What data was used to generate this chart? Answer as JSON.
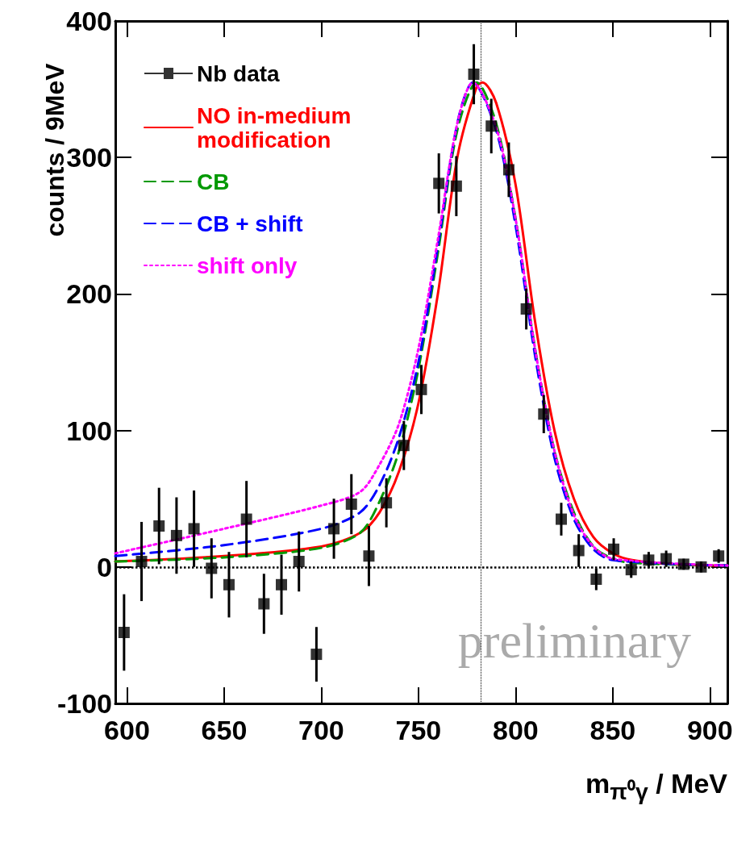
{
  "chart_data": {
    "type": "line",
    "xlabel": "m$_{π⁰γ}$ / MeV",
    "ylabel": "counts / 9MeV",
    "annotations": [
      "preliminary"
    ],
    "xlim": [
      594,
      909
    ],
    "xticks": [
      600,
      650,
      700,
      750,
      800,
      850,
      900
    ],
    "ylim": [
      -100,
      400
    ],
    "yticks": [
      -100,
      0,
      100,
      200,
      300,
      400
    ],
    "grid": false,
    "legend": "top left",
    "ref_lines": [
      {
        "axis": "y",
        "value": 0,
        "label": null,
        "line_style": "dotted"
      },
      {
        "axis": "x",
        "value": 782,
        "label": null,
        "line_style": "dotted"
      }
    ],
    "series": [
      {
        "name": "Nb data",
        "type": "scatter",
        "color": "#000000",
        "marker": "square",
        "x": [
          598.5,
          607.5,
          616.5,
          625.5,
          634.5,
          643.5,
          652.5,
          661.5,
          670.5,
          679.5,
          688.5,
          697.5,
          706.5,
          715.5,
          724.5,
          733.5,
          742.5,
          751.5,
          760.5,
          769.5,
          778.5,
          787.5,
          796.5,
          805.5,
          814.5,
          823.5,
          832.5,
          841.5,
          850.5,
          859.5,
          868.5,
          877.5,
          886.5,
          895.5,
          904.5
        ],
        "values": [
          -48,
          4,
          30,
          23,
          28,
          -1,
          -13,
          35,
          -27,
          -13,
          4,
          -64,
          28,
          46,
          8,
          47,
          89,
          130,
          281,
          279,
          361,
          323,
          291,
          189,
          112,
          35,
          12,
          -9,
          13,
          -2,
          5,
          6,
          2,
          0,
          8
        ],
        "errors": [
          28,
          29,
          28,
          28,
          28,
          22,
          24,
          28,
          22,
          22,
          22,
          20,
          22,
          22,
          22,
          18,
          18,
          18,
          22,
          22,
          22,
          20,
          20,
          15,
          14,
          12,
          12,
          8,
          8,
          6,
          6,
          6,
          4,
          4,
          5
        ]
      },
      {
        "name": "NO in-medium\nmodification",
        "color": "#ff0000",
        "line_style": "solid",
        "x": [
          594,
          650,
          700,
          720,
          730,
          740,
          750,
          760,
          770,
          780,
          783,
          790,
          800,
          810,
          820,
          830,
          840,
          850,
          860,
          880,
          909
        ],
        "values": [
          4,
          8,
          15,
          25,
          40,
          70,
          120,
          200,
          300,
          352,
          355,
          340,
          280,
          180,
          100,
          50,
          22,
          10,
          5,
          2,
          1
        ]
      },
      {
        "name": "CB",
        "color": "#009900",
        "line_style": "dashed",
        "x": [
          594,
          650,
          700,
          720,
          730,
          740,
          750,
          760,
          770,
          780,
          790,
          800,
          810,
          820,
          830,
          840,
          850,
          860,
          909
        ],
        "values": [
          4,
          7,
          14,
          25,
          48,
          85,
          145,
          230,
          320,
          355,
          325,
          255,
          160,
          85,
          40,
          15,
          6,
          3,
          1
        ]
      },
      {
        "name": "CB + shift",
        "color": "#0000ff",
        "line_style": "dashed",
        "x": [
          594,
          650,
          700,
          720,
          730,
          740,
          750,
          760,
          770,
          778,
          790,
          800,
          810,
          820,
          830,
          840,
          850,
          909
        ],
        "values": [
          8,
          16,
          28,
          40,
          60,
          95,
          150,
          235,
          325,
          355,
          320,
          250,
          155,
          80,
          35,
          13,
          5,
          1
        ]
      },
      {
        "name": "shift only",
        "color": "#ff00ff",
        "line_style": "dotted",
        "x": [
          594,
          650,
          700,
          720,
          730,
          740,
          750,
          760,
          770,
          778,
          790,
          800,
          810,
          820,
          830,
          840,
          850,
          909
        ],
        "values": [
          10,
          28,
          45,
          55,
          75,
          105,
          160,
          240,
          325,
          355,
          322,
          255,
          160,
          85,
          38,
          15,
          6,
          1
        ]
      }
    ]
  }
}
